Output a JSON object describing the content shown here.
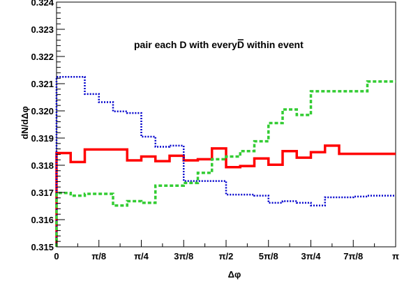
{
  "chart_data": {
    "type": "line",
    "title": "",
    "xlabel": "Δφ",
    "ylabel": "dN/dΔφ",
    "xlim": [
      0,
      3.14159265
    ],
    "ylim": [
      0.315,
      0.324
    ],
    "grid": false,
    "annotation": {
      "prefix": "pair each D with every",
      "dbar": "D",
      "suffix": " within event"
    },
    "x_ticks": [
      {
        "value": 0,
        "label": "0"
      },
      {
        "value": 0.392699,
        "label": "π/8"
      },
      {
        "value": 0.785398,
        "label": "π/4"
      },
      {
        "value": 1.178097,
        "label": "3π/8"
      },
      {
        "value": 1.570796,
        "label": "π/2"
      },
      {
        "value": 1.963495,
        "label": "5π/8"
      },
      {
        "value": 2.356194,
        "label": "3π/4"
      },
      {
        "value": 2.748894,
        "label": "7π/8"
      },
      {
        "value": 3.141593,
        "label": "π"
      }
    ],
    "y_ticks": [
      {
        "value": 0.315,
        "label": "0.315"
      },
      {
        "value": 0.316,
        "label": "0.316"
      },
      {
        "value": 0.317,
        "label": "0.317"
      },
      {
        "value": 0.318,
        "label": "0.318"
      },
      {
        "value": 0.319,
        "label": "0.319"
      },
      {
        "value": 0.32,
        "label": "0.320"
      },
      {
        "value": 0.321,
        "label": "0.321"
      },
      {
        "value": 0.322,
        "label": "0.322"
      },
      {
        "value": 0.323,
        "label": "0.323"
      },
      {
        "value": 0.324,
        "label": "0.324"
      }
    ],
    "bin_edges": [
      0,
      0.1309,
      0.2618,
      0.3927,
      0.5236,
      0.6545,
      0.7854,
      0.9163,
      1.0472,
      1.1781,
      1.309,
      1.4399,
      1.5708,
      1.7017,
      1.8326,
      1.9635,
      2.0944,
      2.2253,
      2.3562,
      2.4871,
      2.618,
      2.7489,
      2.8798,
      3.0107,
      3.1416
    ],
    "series": [
      {
        "color": "#ff0000",
        "dash": "solid",
        "width": 3.5,
        "values": [
          0.31845,
          0.31812,
          0.31858,
          0.31858,
          0.31858,
          0.31818,
          0.31832,
          0.31815,
          0.31835,
          0.31818,
          0.31822,
          0.31862,
          0.31793,
          0.31797,
          0.31825,
          0.31802,
          0.31852,
          0.31828,
          0.31848,
          0.31872,
          0.31842,
          0.31842,
          0.31842,
          0.31842
        ]
      },
      {
        "color": "#0000cc",
        "dash": "dotted",
        "width": 2.5,
        "values": [
          0.32125,
          0.32125,
          0.32062,
          0.32032,
          0.31998,
          0.31992,
          0.31905,
          0.31868,
          0.31872,
          0.31742,
          0.31742,
          0.31742,
          0.31692,
          0.31692,
          0.31688,
          0.31662,
          0.31668,
          0.31662,
          0.31652,
          0.31682,
          0.31682,
          0.31685,
          0.31688,
          0.31688
        ]
      },
      {
        "color": "#33cc33",
        "dash": "dashed",
        "width": 3.5,
        "values": [
          0.31698,
          0.31688,
          0.31695,
          0.31695,
          0.31652,
          0.31668,
          0.31662,
          0.31725,
          0.31725,
          0.31735,
          0.31772,
          0.31822,
          0.31832,
          0.31852,
          0.31888,
          0.31955,
          0.32005,
          0.31985,
          0.32072,
          0.32072,
          0.32072,
          0.32072,
          0.32108,
          0.32108
        ]
      }
    ]
  }
}
